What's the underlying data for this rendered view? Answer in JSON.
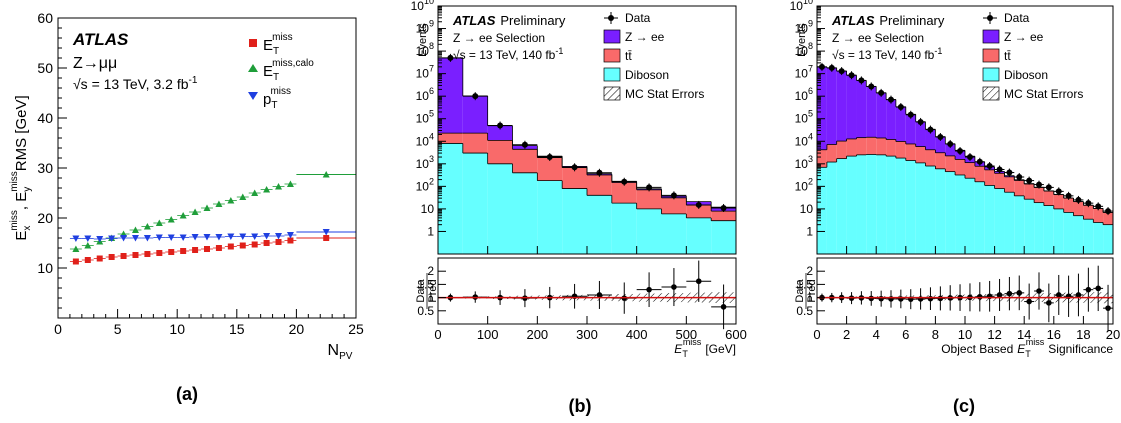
{
  "colors": {
    "zee": "#7a1fff",
    "ttbar": "#f96a6a",
    "diboson": "#66ffff",
    "met": "#e0201a",
    "calo": "#1f9e3a",
    "pt": "#1f3fe0"
  },
  "panels": {
    "a": {
      "caption": "(a)",
      "atlas": "ATLAS",
      "process": "Z→μμ",
      "energy": "√s = 13 TeV, 3.2 fb",
      "energy_sup": "-1",
      "ylabel_main": "RMS [GeV]",
      "xlabel": "N",
      "xlabel_sub": "PV",
      "legend": [
        {
          "base": "E",
          "sub": "T",
          "sup": "miss"
        },
        {
          "base": "E",
          "sub": "T",
          "sup": "miss,calo"
        },
        {
          "base": "p",
          "sub": "T",
          "sup": "miss"
        }
      ]
    },
    "b": {
      "caption": "(b)",
      "atlas": "ATLAS",
      "prelim": "Preliminary",
      "selection": "Z → ee Selection",
      "energy": "√s = 13 TeV, 140 fb",
      "energy_sup": "-1",
      "ylabel": "Events",
      "ratio_label_num": "Data",
      "ratio_label_den": "Pred",
      "xlabel_pre": "",
      "xlabel_unit": "[GeV]",
      "legend": [
        "Data",
        "Z → ee",
        "tt̄",
        "Diboson",
        "MC Stat Errors"
      ]
    },
    "c": {
      "caption": "(c)",
      "atlas": "ATLAS",
      "prelim": "Preliminary",
      "selection": "Z → ee Selection",
      "energy": "√s = 13 TeV, 140 fb",
      "energy_sup": "-1",
      "ylabel": "Events",
      "ratio_label_num": "Data",
      "ratio_label_den": "Pred",
      "xlabel_pre": "Object Based",
      "xlabel_unit": "Significance",
      "legend": [
        "Data",
        "Z → ee",
        "tt̄",
        "Diboson",
        "MC Stat Errors"
      ]
    }
  },
  "chart_data": [
    {
      "type": "scatter",
      "xlim": [
        0,
        25
      ],
      "ylim": [
        0,
        60
      ],
      "xticks": [
        0,
        5,
        10,
        15,
        20,
        25
      ],
      "yticks": [
        10,
        20,
        30,
        40,
        50,
        60
      ],
      "series": [
        {
          "name": "E_T^miss",
          "x": [
            1.5,
            2.5,
            3.5,
            4.5,
            5.5,
            6.5,
            7.5,
            8.5,
            9.5,
            10.5,
            11.5,
            12.5,
            13.5,
            14.5,
            15.5,
            16.5,
            17.5,
            18.5,
            19.5
          ],
          "y": [
            11.3,
            11.6,
            11.9,
            12.2,
            12.4,
            12.6,
            12.8,
            13.0,
            13.2,
            13.4,
            13.6,
            13.8,
            14.0,
            14.3,
            14.5,
            14.7,
            15.0,
            15.2,
            15.5
          ],
          "overflow_x": 22.5,
          "overflow_y": 16.0
        },
        {
          "name": "E_T^miss,calo",
          "x": [
            1.5,
            2.5,
            3.5,
            4.5,
            5.5,
            6.5,
            7.5,
            8.5,
            9.5,
            10.5,
            11.5,
            12.5,
            13.5,
            14.5,
            15.5,
            16.5,
            17.5,
            18.5,
            19.5
          ],
          "y": [
            13.8,
            14.5,
            15.3,
            16.0,
            16.8,
            17.6,
            18.3,
            19.0,
            19.7,
            20.5,
            21.2,
            22.0,
            22.8,
            23.5,
            24.2,
            25.0,
            25.7,
            26.3,
            26.8
          ],
          "overflow_x": 22.5,
          "overflow_y": 28.7
        },
        {
          "name": "p_T^miss",
          "x": [
            1.5,
            2.5,
            3.5,
            4.5,
            5.5,
            6.5,
            7.5,
            8.5,
            9.5,
            10.5,
            11.5,
            12.5,
            13.5,
            14.5,
            15.5,
            16.5,
            17.5,
            18.5,
            19.5
          ],
          "y": [
            15.9,
            15.9,
            15.8,
            15.9,
            16.0,
            16.0,
            16.0,
            16.1,
            16.1,
            16.1,
            16.2,
            16.2,
            16.2,
            16.3,
            16.3,
            16.3,
            16.4,
            16.4,
            16.6
          ],
          "overflow_x": 22.5,
          "overflow_y": 17.2
        }
      ]
    },
    {
      "type": "area",
      "xlim": [
        0,
        600
      ],
      "ylim": [
        0.1,
        10000000000
      ],
      "log_y": true,
      "xticks": [
        0,
        100,
        200,
        300,
        400,
        500,
        600
      ],
      "yticks": [
        1,
        10,
        100,
        1000,
        10000,
        100000,
        1000000,
        10000000,
        100000000,
        1000000000,
        10000000000
      ],
      "bins": [
        0,
        50,
        100,
        150,
        200,
        250,
        300,
        350,
        400,
        450,
        500,
        550,
        600
      ],
      "diboson": [
        8000,
        3000,
        1000,
        400,
        180,
        80,
        40,
        18,
        10,
        6,
        4,
        3
      ],
      "ttbar": [
        15000,
        20000,
        10000,
        4000,
        1700,
        600,
        280,
        130,
        60,
        25,
        11,
        5
      ],
      "zee": [
        50000000,
        1000000,
        38000,
        2000,
        300,
        90,
        40,
        20,
        8,
        6,
        6,
        4
      ],
      "data": [
        50000000,
        1000000,
        50000,
        7000,
        2000,
        700,
        400,
        160,
        90,
        40,
        15,
        11
      ],
      "ratio_ylim": [
        0,
        2.5
      ],
      "ratio_yticks": [
        0.5,
        1,
        1.5,
        2
      ],
      "ratio": [
        1.0,
        1.02,
        1.0,
        0.98,
        1.0,
        1.05,
        1.1,
        0.98,
        1.3,
        1.4,
        1.62,
        0.65
      ]
    },
    {
      "type": "area",
      "xlim": [
        0,
        20
      ],
      "ylim": [
        0.1,
        10000000000
      ],
      "log_y": true,
      "xticks": [
        0,
        2,
        4,
        6,
        8,
        10,
        12,
        14,
        16,
        18,
        20
      ],
      "yticks": [
        1,
        10,
        100,
        1000,
        10000,
        100000,
        1000000,
        10000000,
        100000000,
        1000000000,
        10000000000
      ],
      "bins": [
        0,
        0.67,
        1.33,
        2,
        2.67,
        3.33,
        4,
        4.67,
        5.33,
        6,
        6.67,
        7.33,
        8,
        8.67,
        9.33,
        10,
        10.67,
        11.33,
        12,
        12.67,
        13.33,
        14,
        14.67,
        15.33,
        16,
        16.67,
        17.33,
        18,
        18.67,
        19.33,
        20
      ],
      "diboson": [
        700,
        1200,
        1700,
        2200,
        2500,
        2600,
        2500,
        2200,
        1800,
        1400,
        1100,
        800,
        600,
        450,
        320,
        230,
        160,
        110,
        80,
        55,
        38,
        27,
        19,
        14,
        10,
        7,
        5,
        3.5,
        2.5,
        2
      ],
      "ttbar": [
        3500,
        6000,
        8500,
        10500,
        12000,
        12500,
        11500,
        9800,
        8000,
        6200,
        4700,
        3400,
        2500,
        1800,
        1250,
        900,
        620,
        430,
        300,
        210,
        145,
        100,
        70,
        48,
        33,
        23,
        16,
        11,
        8,
        5
      ],
      "zee": [
        20000000,
        18000000,
        13000000,
        8500000,
        5000000,
        2700000,
        1400000,
        700000,
        330000,
        150000,
        68000,
        30000,
        13000,
        5500,
        2400,
        1050,
        450,
        190,
        80,
        33,
        14,
        6,
        3,
        1.3,
        0.6,
        0.3,
        0.15,
        0.1,
        0.05,
        0.03
      ],
      "data": [
        20000000,
        18000000,
        13000000,
        8500000,
        5000000,
        2700000,
        1400000,
        700000,
        330000,
        150000,
        72000,
        33000,
        15500,
        7600,
        3700,
        2000,
        1230,
        800,
        560,
        410,
        260,
        180,
        120,
        90,
        60,
        38,
        25,
        18,
        13,
        8
      ],
      "ratio_ylim": [
        0,
        2.5
      ],
      "ratio_yticks": [
        0.5,
        1,
        1.5,
        2
      ],
      "ratio": [
        1.0,
        1.0,
        1.0,
        0.98,
        0.99,
        0.97,
        0.96,
        0.95,
        0.95,
        0.94,
        0.95,
        0.96,
        0.97,
        0.99,
        1.0,
        1.01,
        1.03,
        1.05,
        1.1,
        1.15,
        1.18,
        0.85,
        1.25,
        0.8,
        1.1,
        1.05,
        1.1,
        1.3,
        1.35,
        0.6
      ]
    }
  ]
}
